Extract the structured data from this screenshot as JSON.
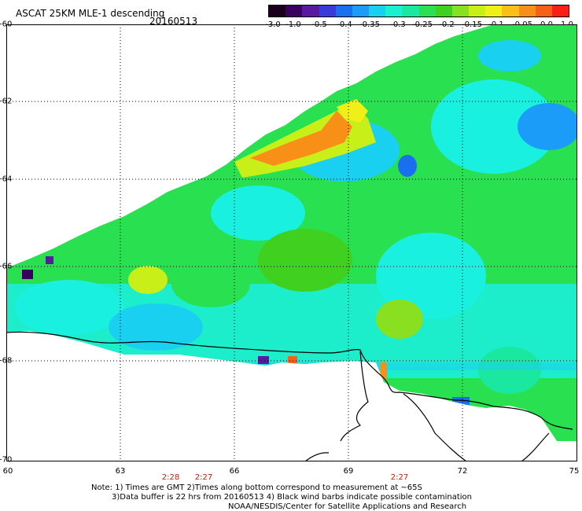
{
  "title": "ASCAT 25KM MLE-1 descending",
  "date": "20160513",
  "colorbar": {
    "labels": [
      "-3.0",
      "-1.0",
      "-0.5",
      "-0.4",
      "-0.35",
      "-0.3",
      "-0.25",
      "-0.2",
      "-0.15",
      "-0.1",
      "-0.05",
      "0.0",
      "1.0"
    ],
    "colors": [
      "#1a001a",
      "#3a0060",
      "#5a1aa0",
      "#3a3ad8",
      "#1a6ef0",
      "#1a9cf8",
      "#1ad0f0",
      "#1af0d0",
      "#1ae8a0",
      "#28e050",
      "#40d020",
      "#88e020",
      "#c8f018",
      "#f0f018",
      "#f8c018",
      "#f89018",
      "#f86018",
      "#f82018"
    ]
  },
  "axes": {
    "lat_labels": [
      "-60",
      "-62",
      "-64",
      "-66",
      "-68",
      "-70"
    ],
    "lon_labels": [
      "60",
      "63",
      "66",
      "69",
      "72",
      "75"
    ]
  },
  "times": [
    "2:28",
    "2:27",
    "2:27"
  ],
  "notes": [
    "Note: 1) Times are GMT 2)Times along bottom correspond to measurement at ~65S",
    "3)Data buffer is 22 hrs from 20160513 4) Black wind barbs indicate possible contamination",
    "NOAA/NESDIS/Center for Satellite Applications and Research"
  ]
}
